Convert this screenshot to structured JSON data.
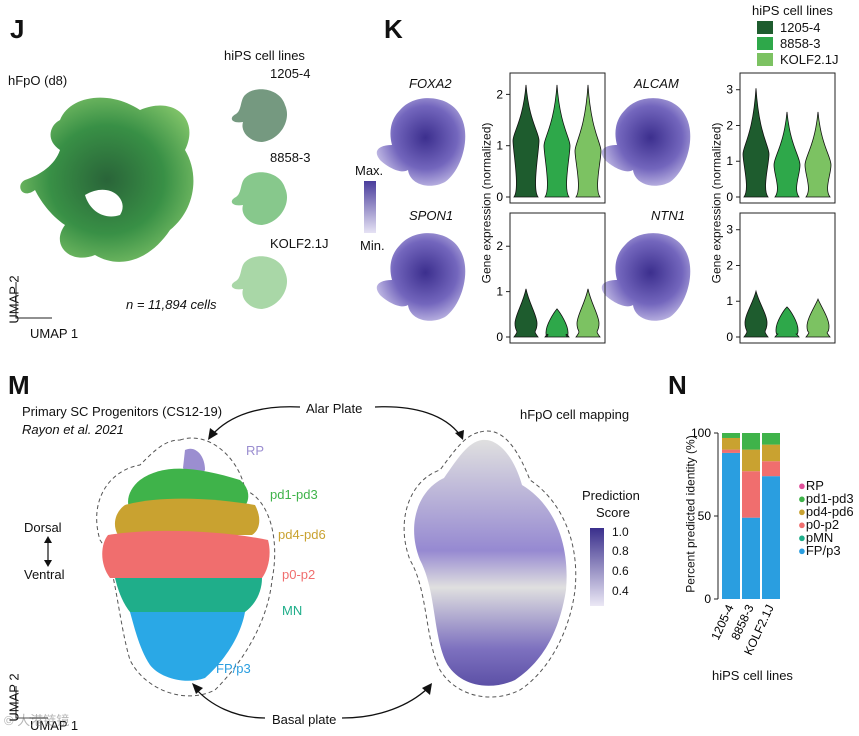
{
  "colors": {
    "c1205": "#1e5c2e",
    "c8858": "#2ea84a",
    "ckolf": "#7cc262",
    "RP": "#9b8ed0",
    "pd1_pd3": "#3fb34a",
    "pd4_pd6": "#c9a230",
    "p0_p2": "#f06e6e",
    "pMN": "#1fae8a",
    "FP_p3": "#2a9ee0",
    "expr_max": "#4a3d9c",
    "expr_min": "#e6e2f4"
  },
  "panelJ": {
    "letter": "J",
    "dataset": "hFpO (d8)",
    "cell_count": "n = 11,894 cells",
    "legend_title": "hiPS cell lines",
    "lines": [
      "1205-4",
      "8858-3",
      "KOLF2.1J"
    ],
    "axis_x": "UMAP 1",
    "axis_y": "UMAP 2"
  },
  "panelK": {
    "letter": "K",
    "legend_title": "hiPS cell lines",
    "legend_items": [
      "1205-4",
      "8858-3",
      "KOLF2.1J"
    ],
    "scale_max": "Max.",
    "scale_min": "Min.",
    "genes": [
      "FOXA2",
      "ALCAM",
      "SPON1",
      "NTN1"
    ],
    "ylabel": "Gene expression (normalized)"
  },
  "panelM": {
    "letter": "M",
    "left_title": "Primary SC Progenitors (CS12-19)",
    "left_citation": "Rayon et al. 2021",
    "right_title": "hFpO cell mapping",
    "alar": "Alar Plate",
    "basal": "Basal plate",
    "dorsal": "Dorsal",
    "ventral": "Ventral",
    "domains": [
      "RP",
      "pd1-pd3",
      "pd4-pd6",
      "p0-p2",
      "MN",
      "FP/p3"
    ],
    "score_title_1": "Prediction",
    "score_title_2": "Score",
    "score_ticks": [
      "1.0",
      "0.8",
      "0.6",
      "0.4"
    ],
    "axis_x": "UMAP 1",
    "axis_y": "UMAP 2",
    "watermark": "© 大港链镜"
  },
  "panelN": {
    "letter": "N",
    "xlabel": "hiPS cell lines",
    "ylabel": "Percent predicted identity (%)",
    "legend": [
      "RP",
      "pd1-pd3",
      "pd4-pd6",
      "p0-p2",
      "pMN",
      "FP/p3"
    ]
  },
  "chart_data": [
    {
      "type": "violin",
      "title": "FOXA2",
      "categories": [
        "1205-4",
        "8858-3",
        "KOLF2.1J"
      ],
      "ylim": [
        0,
        2.3
      ],
      "yticks": [
        "0",
        "1",
        "2"
      ],
      "medians": [
        1.1,
        1.0,
        0.9
      ]
    },
    {
      "type": "violin",
      "title": "ALCAM",
      "categories": [
        "1205-4",
        "8858-3",
        "KOLF2.1J"
      ],
      "ylim": [
        0,
        3.3
      ],
      "yticks": [
        "0",
        "1",
        "2",
        "3"
      ],
      "medians": [
        1.2,
        0.9,
        0.9
      ]
    },
    {
      "type": "violin",
      "title": "SPON1",
      "categories": [
        "1205-4",
        "8858-3",
        "KOLF2.1J"
      ],
      "ylim": [
        0,
        2.6
      ],
      "yticks": [
        "0",
        "1",
        "2"
      ],
      "medians": [
        0.3,
        0.1,
        0.3
      ]
    },
    {
      "type": "violin",
      "title": "NTN1",
      "categories": [
        "1205-4",
        "8858-3",
        "KOLF2.1J"
      ],
      "ylim": [
        0,
        3.3
      ],
      "yticks": [
        "0",
        "1",
        "2",
        "3"
      ],
      "medians": [
        0.4,
        0.2,
        0.3
      ]
    },
    {
      "type": "bar",
      "stacked": true,
      "title": "Percent predicted identity",
      "categories": [
        "1205-4",
        "8858-3",
        "KOLF2.1J"
      ],
      "ylim": [
        0,
        100
      ],
      "yticks": [
        "0",
        "50",
        "100"
      ],
      "series": [
        {
          "name": "FP/p3",
          "values": [
            88,
            49,
            74
          ]
        },
        {
          "name": "pMN",
          "values": [
            0,
            0,
            0
          ]
        },
        {
          "name": "p0-p2",
          "values": [
            2,
            28,
            9
          ]
        },
        {
          "name": "pd4-pd6",
          "values": [
            7,
            13,
            10
          ]
        },
        {
          "name": "pd1-pd3",
          "values": [
            3,
            10,
            7
          ]
        },
        {
          "name": "RP",
          "values": [
            0,
            0,
            0
          ]
        }
      ]
    }
  ]
}
